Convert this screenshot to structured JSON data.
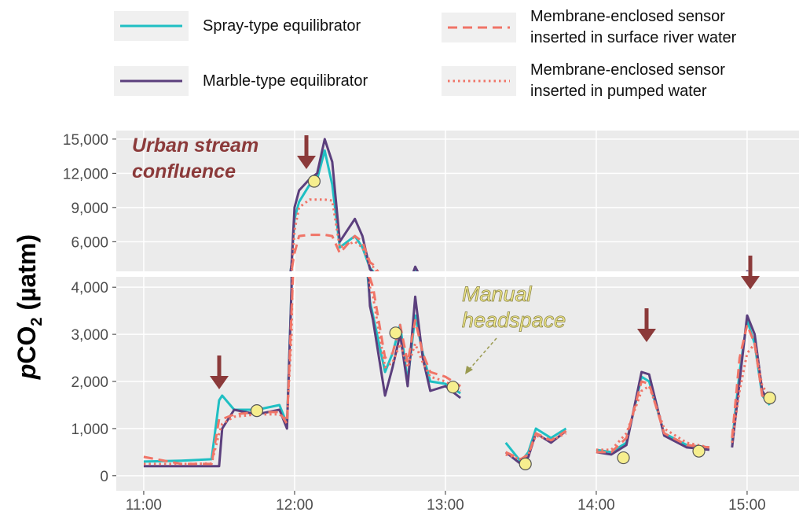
{
  "chart_data": {
    "type": "line",
    "y_label": [
      "p",
      "CO",
      "2",
      " (µatm)"
    ],
    "annotations": [
      {
        "lines": [
          "Urban stream",
          "confluence"
        ]
      },
      {
        "lines": [
          "Manual",
          "headspace"
        ]
      }
    ],
    "xlim": [
      10.818,
      15.344
    ],
    "xticks": [
      {
        "value": 11,
        "label": "11:00"
      },
      {
        "value": 12,
        "label": "12:00"
      },
      {
        "value": 13,
        "label": "13:00"
      },
      {
        "value": 14,
        "label": "14:00"
      },
      {
        "value": 15,
        "label": "15:00"
      }
    ],
    "panels": [
      {
        "ylim": [
          3400,
          15750
        ],
        "yticks": [
          {
            "value": 6000,
            "label": "6,000"
          },
          {
            "value": 9000,
            "label": "9,000"
          },
          {
            "value": 12000,
            "label": "12,000"
          },
          {
            "value": 15000,
            "label": "15,000"
          }
        ]
      },
      {
        "ylim": [
          -320,
          4220
        ],
        "yticks": [
          0,
          {
            "value": 1000,
            "label": "1,000"
          },
          {
            "value": 2000,
            "label": "2,000"
          },
          {
            "value": 3000,
            "label": "3,000"
          },
          {
            "value": 4000,
            "label": "4,000"
          }
        ]
      }
    ],
    "grid": true,
    "x": [
      11.0,
      11.25,
      11.45,
      11.5,
      11.52,
      11.6,
      11.75,
      11.9,
      11.95,
      11.98,
      12.0,
      12.03,
      12.1,
      12.15,
      12.2,
      12.25,
      12.3,
      12.4,
      12.45,
      12.5,
      12.52,
      12.6,
      12.65,
      12.7,
      12.75,
      12.8,
      12.85,
      12.9,
      13.0,
      13.1,
      13.25,
      13.4,
      13.5,
      13.55,
      13.6,
      13.7,
      13.8,
      13.9,
      14.0,
      14.1,
      14.2,
      14.3,
      14.35,
      14.45,
      14.6,
      14.75,
      14.85,
      14.9,
      14.95,
      15.0,
      15.05,
      15.1,
      15.15
    ],
    "series": [
      {
        "name": "Spray-type equilibrator",
        "color": "#1fbfc3",
        "style": "solid",
        "values": [
          300,
          320,
          350,
          1600,
          1700,
          1400,
          1400,
          1500,
          1100,
          4000,
          8000,
          9500,
          11000,
          11500,
          14000,
          11000,
          5500,
          6500,
          5500,
          3700,
          3400,
          2200,
          2600,
          3200,
          2000,
          3400,
          2600,
          2000,
          1950,
          1750,
          null,
          700,
          300,
          500,
          1000,
          800,
          1000,
          null,
          550,
          500,
          700,
          2100,
          2000,
          900,
          650,
          600,
          null,
          700,
          2200,
          3300,
          2800,
          1700,
          1500
        ]
      },
      {
        "name": "Marble-type equilibrator",
        "color": "#5b3f7d",
        "style": "solid",
        "values": [
          200,
          200,
          200,
          200,
          1000,
          1400,
          1300,
          1400,
          1000,
          4000,
          9000,
          10500,
          11500,
          12000,
          15000,
          13000,
          6000,
          8000,
          6500,
          3600,
          3300,
          1700,
          2300,
          3000,
          1900,
          3800,
          2500,
          1800,
          1900,
          1650,
          null,
          500,
          250,
          400,
          900,
          700,
          950,
          null,
          500,
          450,
          650,
          2200,
          2150,
          850,
          600,
          550,
          null,
          600,
          2000,
          3400,
          3000,
          1800,
          1550
        ]
      },
      {
        "name": "Membrane-enclosed sensor inserted in surface river water",
        "color": "#f07467",
        "style": "dashed",
        "values": [
          400,
          250,
          250,
          1200,
          1200,
          1300,
          1350,
          1350,
          1100,
          3500,
          5000,
          6500,
          6600,
          6600,
          6600,
          6500,
          5000,
          6500,
          6000,
          4200,
          4000,
          2500,
          2600,
          3200,
          2400,
          3300,
          2600,
          2200,
          2100,
          1900,
          null,
          500,
          350,
          450,
          900,
          750,
          950,
          null,
          500,
          500,
          800,
          2000,
          1950,
          900,
          650,
          600,
          null,
          800,
          2500,
          3200,
          2800,
          1700,
          1600
        ]
      },
      {
        "name": "Membrane-enclosed sensor inserted in pumped water",
        "color": "#f07467",
        "style": "dotted",
        "values": [
          250,
          250,
          260,
          900,
          1100,
          1250,
          1300,
          1300,
          1200,
          3000,
          7000,
          9000,
          9700,
          9700,
          9700,
          9600,
          5500,
          6000,
          5500,
          4000,
          3800,
          2300,
          2400,
          2800,
          2300,
          2800,
          2400,
          2100,
          2000,
          1800,
          null,
          450,
          350,
          450,
          850,
          750,
          900,
          null,
          550,
          550,
          900,
          1800,
          1900,
          1000,
          700,
          600,
          null,
          700,
          1800,
          2600,
          2800,
          1900,
          1700
        ]
      }
    ],
    "points": {
      "color": "#f6ee8e",
      "x": [
        12.13,
        11.75,
        12.67,
        13.05,
        13.53,
        14.18,
        14.68,
        15.15
      ],
      "values": [
        11300,
        1380,
        3030,
        1880,
        250,
        380,
        520,
        1650
      ]
    }
  }
}
